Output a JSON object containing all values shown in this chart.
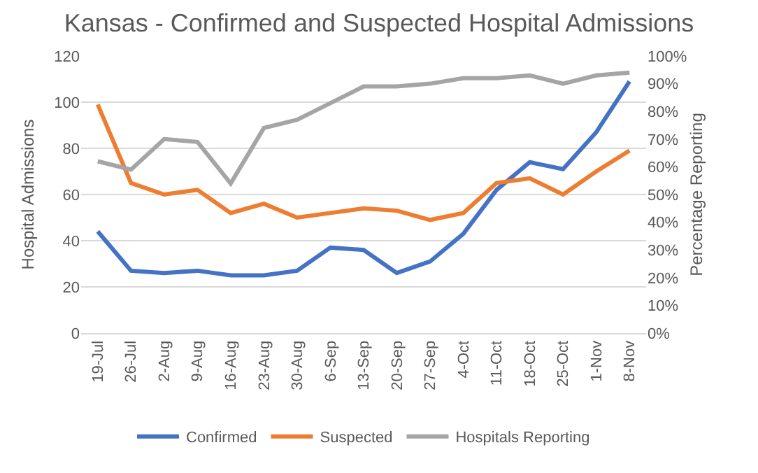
{
  "chart_data": {
    "type": "line",
    "title": "Kansas - Confirmed and Suspected Hospital Admissions",
    "ylabel": "Hospital Admissions",
    "y2label": "Percentage Reporting",
    "categories": [
      "19-Jul",
      "26-Jul",
      "2-Aug",
      "9-Aug",
      "16-Aug",
      "23-Aug",
      "30-Aug",
      "6-Sep",
      "13-Sep",
      "20-Sep",
      "27-Sep",
      "4-Oct",
      "11-Oct",
      "18-Oct",
      "25-Oct",
      "1-Nov",
      "8-Nov"
    ],
    "series": [
      {
        "name": "Confirmed",
        "color": "#4472c4",
        "values": [
          44,
          27,
          26,
          27,
          25,
          25,
          27,
          37,
          36,
          26,
          31,
          43,
          62,
          74,
          71,
          87,
          109
        ]
      },
      {
        "name": "Suspected",
        "color": "#ed7d31",
        "values": [
          99,
          65,
          60,
          62,
          52,
          56,
          50,
          52,
          54,
          53,
          49,
          52,
          65,
          67,
          60,
          70,
          79
        ]
      },
      {
        "name": "Hospitals Reporting",
        "color": "#a5a5a5",
        "axis": "y2",
        "values": [
          62,
          59,
          70,
          69,
          54,
          74,
          77,
          83,
          89,
          89,
          90,
          92,
          92,
          93,
          90,
          93,
          94
        ]
      }
    ],
    "ylim": [
      0,
      120
    ],
    "yticks": [
      0,
      20,
      40,
      60,
      80,
      100,
      120
    ],
    "y2lim": [
      0,
      100
    ],
    "y2ticks": [
      {
        "value": 0,
        "label": "0%"
      },
      {
        "value": 10,
        "label": "10%"
      },
      {
        "value": 20,
        "label": "20%"
      },
      {
        "value": 30,
        "label": "30%"
      },
      {
        "value": 40,
        "label": "40%"
      },
      {
        "value": 50,
        "label": "50%"
      },
      {
        "value": 60,
        "label": "60%"
      },
      {
        "value": 70,
        "label": "70%"
      },
      {
        "value": 80,
        "label": "80%"
      },
      {
        "value": 90,
        "label": "90%"
      },
      {
        "value": 100,
        "label": "100%"
      }
    ],
    "grid": "y",
    "legend": "bottom",
    "marker": "none",
    "line_style": "solid"
  }
}
